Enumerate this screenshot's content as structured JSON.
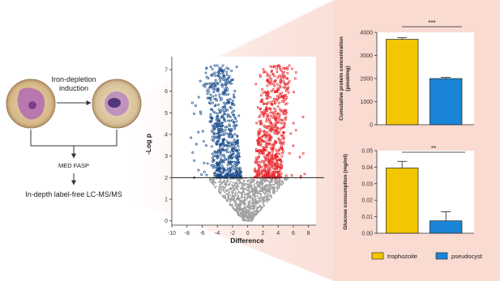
{
  "workflow": {
    "step1": "Iron-depletion",
    "step2": "induction",
    "step3": "MED FASP",
    "step4": "In-depth label-free LC-MS/MS"
  },
  "colors": {
    "trophozoite": "#f2c600",
    "pseudocyst": "#1a85d6",
    "volcano_up": "#e8262a",
    "volcano_down": "#1c4e8c",
    "volcano_ns": "#a0a0a0",
    "panel_bg": "#fbe0d8"
  },
  "chart_data": [
    {
      "type": "scatter",
      "name": "volcano",
      "xlabel": "Difference",
      "ylabel": "-Log p",
      "xlim": [
        -10,
        9
      ],
      "ylim": [
        -0.2,
        7.6
      ],
      "xticks": [
        -10,
        -8,
        -6,
        -4,
        -2,
        0,
        2,
        4,
        6,
        8
      ],
      "yticks": [
        0,
        1,
        2,
        3,
        4,
        5,
        6,
        7
      ],
      "threshold_y": 2,
      "groups": [
        {
          "name": "down",
          "x_range": [
            -8.5,
            -0.6
          ],
          "y_range": [
            2,
            7.2
          ]
        },
        {
          "name": "up",
          "x_range": [
            0.6,
            7.5
          ],
          "y_range": [
            2,
            7.5
          ]
        },
        {
          "name": "not significant",
          "x_range": [
            -6,
            6
          ],
          "y_range": [
            0,
            2
          ]
        }
      ]
    },
    {
      "type": "bar",
      "name": "protein",
      "categories": [
        "trophozoite",
        "pseudocyst"
      ],
      "values": [
        3700,
        2000
      ],
      "errors": [
        70,
        50
      ],
      "ylabel": "Cumulative protein concentration (pmol/mg)",
      "ylim": [
        0,
        4000
      ],
      "yticks": [
        "0",
        "1000",
        "2000",
        "3000",
        "4000"
      ],
      "significance": "***"
    },
    {
      "type": "bar",
      "name": "glucose",
      "categories": [
        "trophozoite",
        "pseudocyst"
      ],
      "values": [
        0.0395,
        0.0075
      ],
      "errors": [
        0.004,
        0.0055
      ],
      "ylabel": "Glucose consumption (mg/ml)",
      "ylim": [
        0,
        0.05
      ],
      "yticks": [
        "0.00",
        "0.01",
        "0.02",
        "0.03",
        "0.04",
        "0.05"
      ],
      "significance": "**"
    }
  ],
  "legend": {
    "items": [
      {
        "label": "trophozoite",
        "color": "#f2c600"
      },
      {
        "label": "pseudocyst",
        "color": "#1a85d6"
      }
    ]
  }
}
